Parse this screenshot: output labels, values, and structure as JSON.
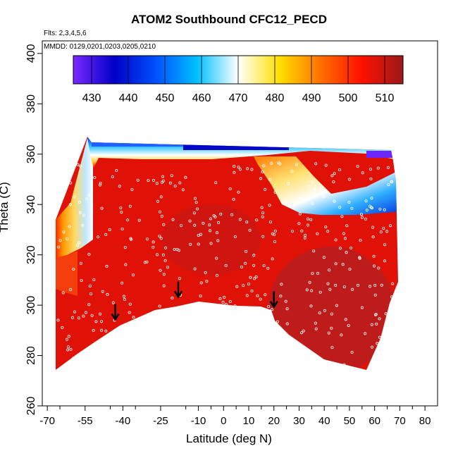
{
  "chart_data": {
    "type": "heatmap",
    "title": "ATOM2 Southbound CFC12_PECD",
    "notes": [
      "Flts: 2,3,4,5,6",
      "MMDD: 0129,0201,0203,0205,0210"
    ],
    "xlabel": "Latitude (deg N)",
    "ylabel": "Theta (C)",
    "xlim": [
      -72,
      85
    ],
    "ylim": [
      260,
      405
    ],
    "x_ticks": [
      -70,
      -55,
      -40,
      -25,
      -10,
      0,
      10,
      20,
      30,
      40,
      50,
      60,
      70,
      80
    ],
    "y_ticks": [
      260,
      280,
      300,
      320,
      340,
      360,
      380,
      400
    ],
    "colorbar": {
      "range": [
        425,
        515
      ],
      "ticks": [
        430,
        440,
        450,
        460,
        470,
        480,
        490,
        500,
        510
      ],
      "colors": [
        "#7b28ff",
        "#0000c8",
        "#0050ff",
        "#00c0ff",
        "#ffffff",
        "#ffe000",
        "#ff7000",
        "#ff1000",
        "#9a1a1a"
      ]
    },
    "arrows": [
      {
        "lat": -43,
        "theta": 294
      },
      {
        "lat": -18,
        "theta": 303
      },
      {
        "lat": 20,
        "theta": 299
      }
    ]
  }
}
